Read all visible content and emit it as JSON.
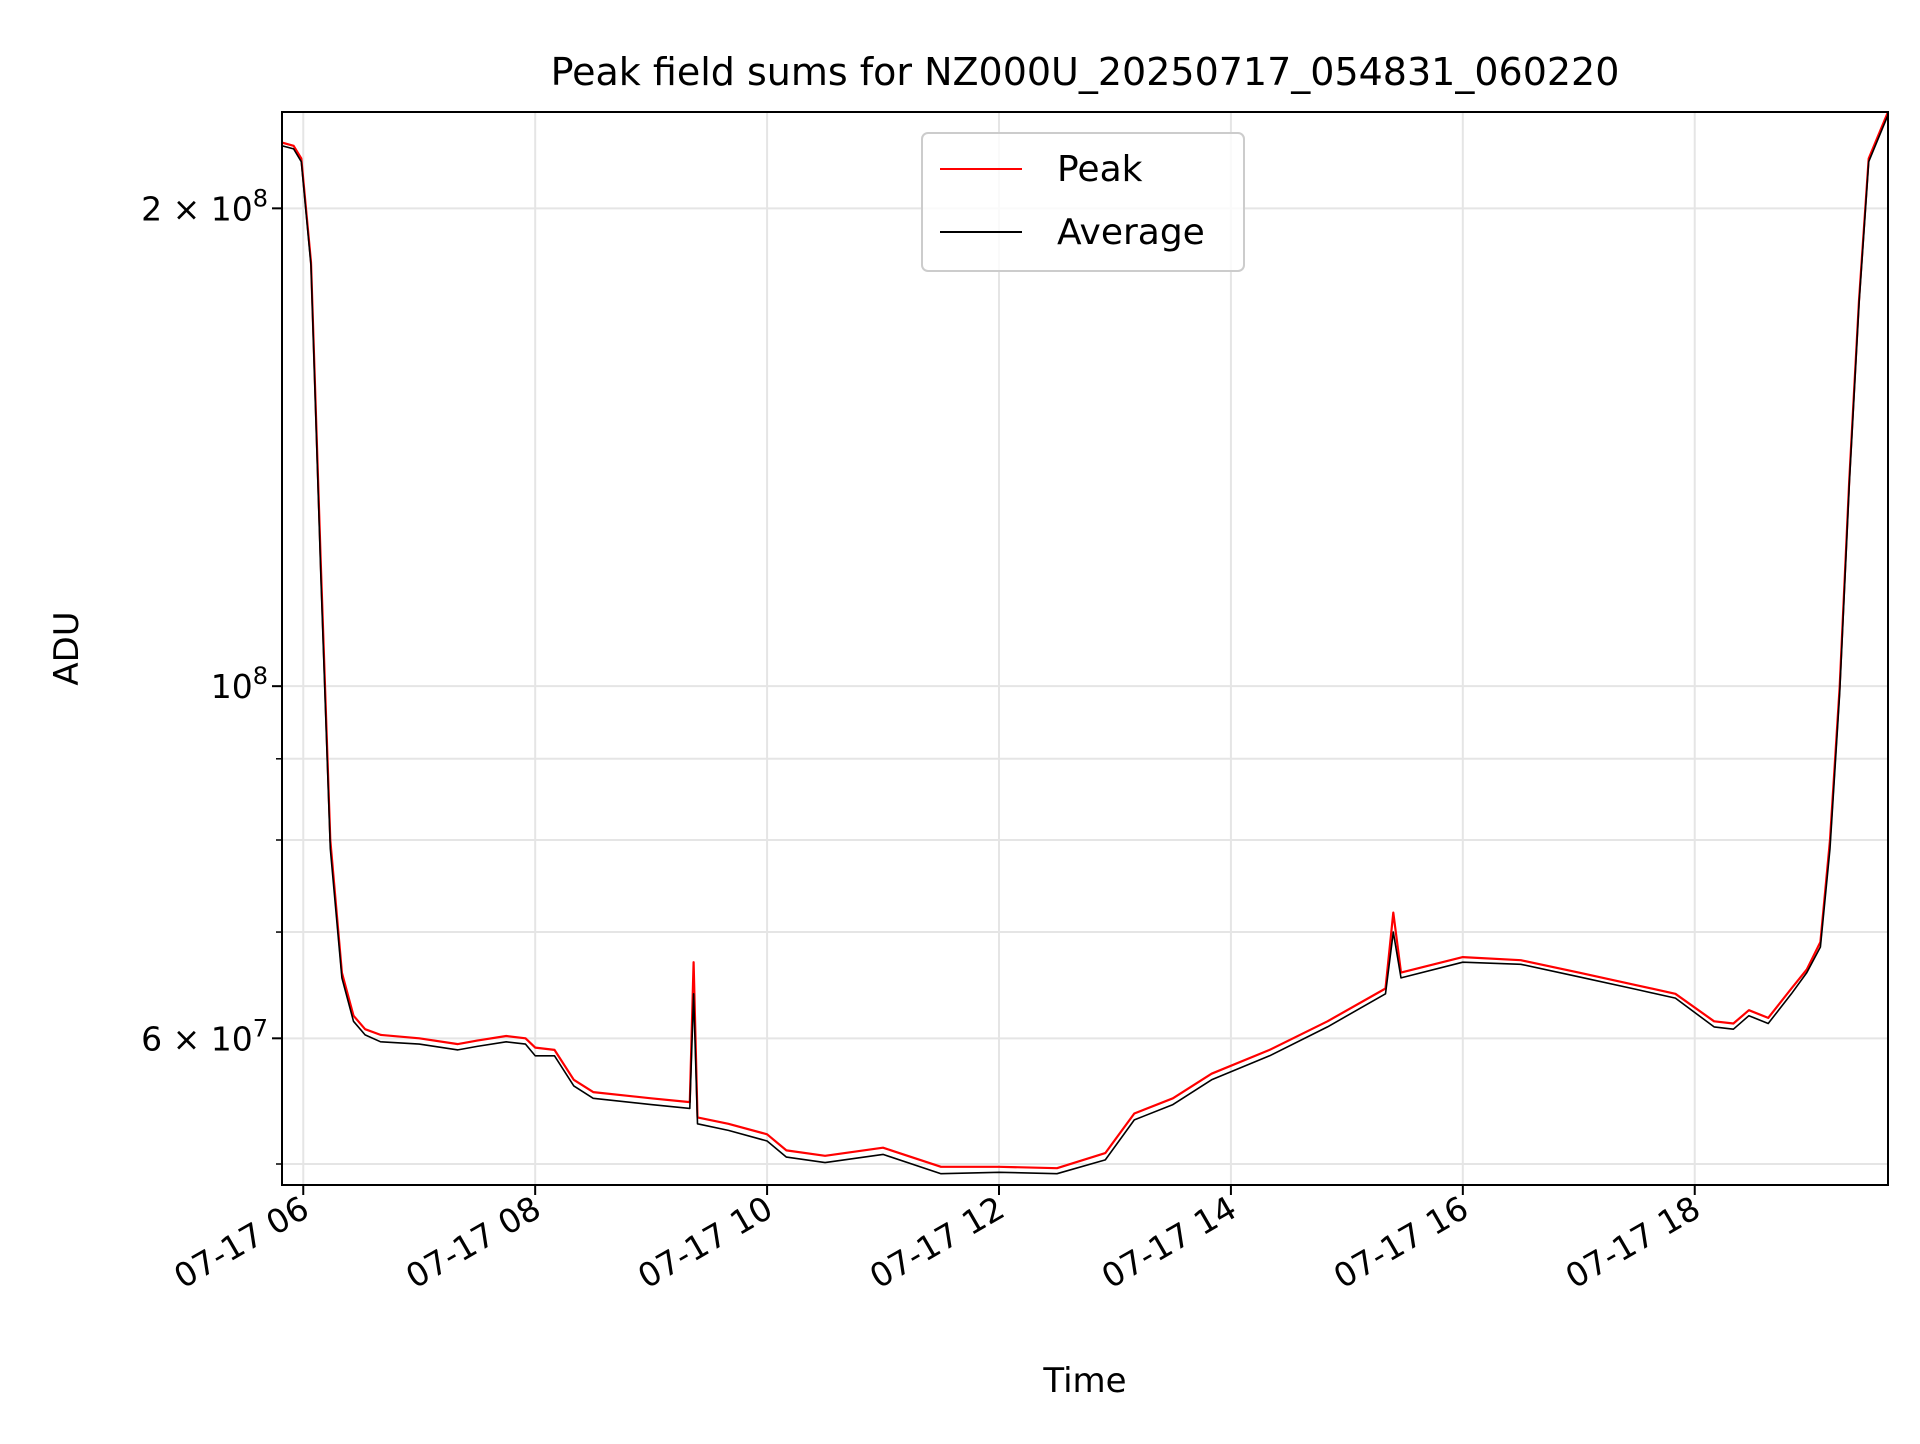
{
  "chart_data": {
    "type": "line",
    "title": "Peak field sums for NZ000U_20250717_054831_060220",
    "xlabel": "Time",
    "ylabel": "ADU",
    "x_scale": "time",
    "y_scale": "log",
    "xlim": [
      "2025-07-17 05:49",
      "2025-07-17 19:40"
    ],
    "ylim": [
      48500000,
      230000000
    ],
    "x_ticks": [
      "2025-07-17 06:00",
      "2025-07-17 08:00",
      "2025-07-17 10:00",
      "2025-07-17 12:00",
      "2025-07-17 14:00",
      "2025-07-17 16:00",
      "2025-07-17 18:00"
    ],
    "x_tick_labels": [
      "07-17 06",
      "07-17 08",
      "07-17 10",
      "07-17 12",
      "07-17 14",
      "07-17 16",
      "07-17 18"
    ],
    "y_ticks": [
      {
        "value": 200000000,
        "label": "2 × 10",
        "exp": "8"
      },
      {
        "value": 100000000,
        "label": "10",
        "exp": "8"
      },
      {
        "value": 60000000,
        "label": "6 × 10",
        "exp": "7"
      }
    ],
    "y_minor_ticks": [
      50000000,
      70000000,
      80000000,
      90000000
    ],
    "grid": true,
    "legend": {
      "placement": "upper center",
      "entries": [
        "Peak",
        "Average"
      ]
    },
    "series": [
      {
        "name": "Peak",
        "color": "#ff0000",
        "x": [
          "2025-07-17 05:49",
          "2025-07-17 05:55",
          "2025-07-17 05:59",
          "2025-07-17 06:04",
          "2025-07-17 06:09",
          "2025-07-17 06:14",
          "2025-07-17 06:20",
          "2025-07-17 06:26",
          "2025-07-17 06:32",
          "2025-07-17 06:40",
          "2025-07-17 07:00",
          "2025-07-17 07:20",
          "2025-07-17 07:30",
          "2025-07-17 07:45",
          "2025-07-17 07:55",
          "2025-07-17 08:00",
          "2025-07-17 08:10",
          "2025-07-17 08:20",
          "2025-07-17 08:30",
          "2025-07-17 09:00",
          "2025-07-17 09:20",
          "2025-07-17 09:22",
          "2025-07-17 09:24",
          "2025-07-17 09:40",
          "2025-07-17 10:00",
          "2025-07-17 10:10",
          "2025-07-17 10:30",
          "2025-07-17 11:00",
          "2025-07-17 11:30",
          "2025-07-17 12:00",
          "2025-07-17 12:30",
          "2025-07-17 12:55",
          "2025-07-17 13:10",
          "2025-07-17 13:30",
          "2025-07-17 13:50",
          "2025-07-17 14:20",
          "2025-07-17 14:50",
          "2025-07-17 15:20",
          "2025-07-17 15:24",
          "2025-07-17 15:28",
          "2025-07-17 16:00",
          "2025-07-17 16:30",
          "2025-07-17 17:00",
          "2025-07-17 17:30",
          "2025-07-17 17:50",
          "2025-07-17 18:10",
          "2025-07-17 18:20",
          "2025-07-17 18:28",
          "2025-07-17 18:38",
          "2025-07-17 18:50",
          "2025-07-17 18:58",
          "2025-07-17 19:05",
          "2025-07-17 19:10",
          "2025-07-17 19:15",
          "2025-07-17 19:20",
          "2025-07-17 19:25",
          "2025-07-17 19:30",
          "2025-07-17 19:40"
        ],
        "y": [
          220000000,
          219000000,
          215000000,
          185000000,
          120000000,
          80000000,
          66000000,
          62000000,
          60800000,
          60300000,
          60000000,
          59500000,
          59800000,
          60200000,
          60000000,
          59200000,
          59000000,
          56500000,
          55500000,
          55000000,
          54700000,
          67000000,
          53500000,
          53000000,
          52200000,
          51000000,
          50600000,
          51200000,
          49800000,
          49800000,
          49700000,
          50800000,
          53800000,
          55000000,
          57000000,
          59000000,
          61500000,
          64500000,
          72000000,
          66000000,
          67500000,
          67200000,
          66000000,
          64800000,
          64000000,
          61500000,
          61300000,
          62500000,
          61800000,
          64500000,
          66300000,
          69000000,
          80000000,
          100000000,
          135000000,
          175000000,
          215000000,
          230000000
        ]
      },
      {
        "name": "Average",
        "color": "#000000",
        "x": [
          "2025-07-17 05:49",
          "2025-07-17 05:55",
          "2025-07-17 05:59",
          "2025-07-17 06:04",
          "2025-07-17 06:09",
          "2025-07-17 06:14",
          "2025-07-17 06:20",
          "2025-07-17 06:26",
          "2025-07-17 06:32",
          "2025-07-17 06:40",
          "2025-07-17 07:00",
          "2025-07-17 07:20",
          "2025-07-17 07:30",
          "2025-07-17 07:45",
          "2025-07-17 07:55",
          "2025-07-17 08:00",
          "2025-07-17 08:10",
          "2025-07-17 08:20",
          "2025-07-17 08:30",
          "2025-07-17 09:00",
          "2025-07-17 09:20",
          "2025-07-17 09:22",
          "2025-07-17 09:24",
          "2025-07-17 09:40",
          "2025-07-17 10:00",
          "2025-07-17 10:10",
          "2025-07-17 10:30",
          "2025-07-17 11:00",
          "2025-07-17 11:30",
          "2025-07-17 12:00",
          "2025-07-17 12:30",
          "2025-07-17 12:55",
          "2025-07-17 13:10",
          "2025-07-17 13:30",
          "2025-07-17 13:50",
          "2025-07-17 14:20",
          "2025-07-17 14:50",
          "2025-07-17 15:20",
          "2025-07-17 15:24",
          "2025-07-17 15:28",
          "2025-07-17 16:00",
          "2025-07-17 16:30",
          "2025-07-17 17:00",
          "2025-07-17 17:30",
          "2025-07-17 17:50",
          "2025-07-17 18:10",
          "2025-07-17 18:20",
          "2025-07-17 18:28",
          "2025-07-17 18:38",
          "2025-07-17 18:50",
          "2025-07-17 18:58",
          "2025-07-17 19:05",
          "2025-07-17 19:10",
          "2025-07-17 19:15",
          "2025-07-17 19:20",
          "2025-07-17 19:25",
          "2025-07-17 19:30",
          "2025-07-17 19:40"
        ],
        "y": [
          219000000,
          218000000,
          214000000,
          184000000,
          118000000,
          79000000,
          65500000,
          61500000,
          60300000,
          59700000,
          59500000,
          59000000,
          59300000,
          59700000,
          59500000,
          58500000,
          58500000,
          56000000,
          55000000,
          54500000,
          54200000,
          64000000,
          53000000,
          52500000,
          51700000,
          50500000,
          50100000,
          50700000,
          49300000,
          49400000,
          49300000,
          50300000,
          53300000,
          54500000,
          56500000,
          58500000,
          61000000,
          64000000,
          70000000,
          65500000,
          67000000,
          66800000,
          65600000,
          64400000,
          63600000,
          61000000,
          60800000,
          62000000,
          61300000,
          64000000,
          66000000,
          68500000,
          79000000,
          99000000,
          134000000,
          174000000,
          214000000,
          229000000
        ]
      }
    ]
  }
}
